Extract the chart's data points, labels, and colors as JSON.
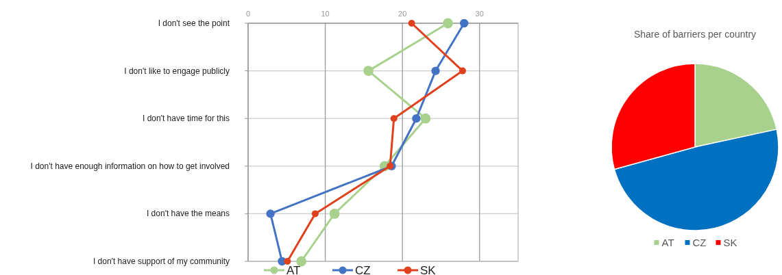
{
  "chart_data": [
    {
      "type": "line",
      "orientation": "horizontal",
      "categories": [
        "I don't see the point",
        "I don't like to engage publicly",
        "I don't have time for this",
        "I don't have enough information on how to get involved",
        "I don't have the means",
        "I don't have support of my community"
      ],
      "series": [
        {
          "name": "AT",
          "color": "#a9d18e",
          "values": [
            25.9,
            15.6,
            23.0,
            17.7,
            11.2,
            6.9
          ]
        },
        {
          "name": "CZ",
          "color": "#4472c4",
          "values": [
            28.0,
            24.3,
            21.8,
            18.6,
            2.9,
            4.4
          ]
        },
        {
          "name": "SK",
          "color": "#e0401c",
          "values": [
            21.2,
            27.8,
            18.9,
            18.4,
            8.7,
            5.1
          ]
        }
      ],
      "xlim": [
        0,
        35
      ],
      "xticks": [
        0,
        10,
        20,
        30
      ],
      "grid": true,
      "legend": "bottom",
      "marker": "circle",
      "line_style": "solid"
    },
    {
      "type": "pie",
      "title": "Share of barriers per country",
      "categories": [
        "AT",
        "CZ",
        "SK"
      ],
      "values": [
        21.6,
        49.1,
        29.3
      ],
      "colors": [
        "#a9d18e",
        "#0070c0",
        "#ff0000"
      ],
      "legend": "bottom"
    }
  ]
}
